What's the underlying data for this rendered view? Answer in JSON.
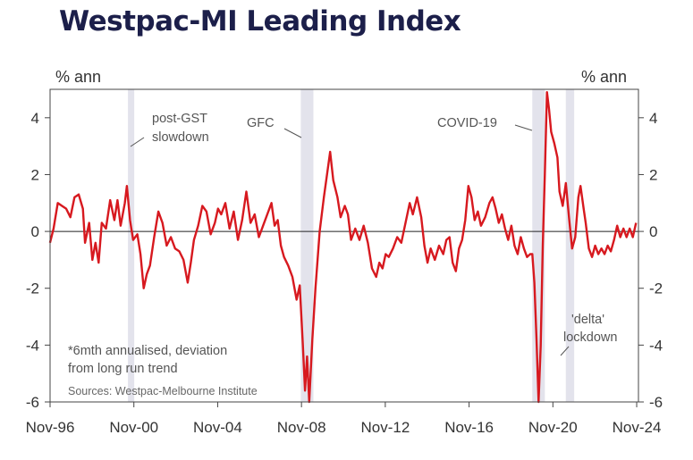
{
  "chart_data": {
    "type": "line",
    "title": "Westpac-MI Leading Index",
    "ylabel_left": "% ann",
    "ylabel_right": "% ann",
    "ylim": [
      -6,
      5
    ],
    "yticks": [
      4,
      2,
      0,
      -2,
      -4,
      -6
    ],
    "xlim": [
      1996.833,
      2024.917
    ],
    "xticks": [
      {
        "value": 1996.833,
        "label": "Nov-96"
      },
      {
        "value": 2000.833,
        "label": "Nov-00"
      },
      {
        "value": 2004.833,
        "label": "Nov-04"
      },
      {
        "value": 2008.833,
        "label": "Nov-08"
      },
      {
        "value": 2012.833,
        "label": "Nov-12"
      },
      {
        "value": 2016.833,
        "label": "Nov-16"
      },
      {
        "value": 2020.833,
        "label": "Nov-20"
      },
      {
        "value": 2024.833,
        "label": "Nov-24"
      }
    ],
    "grid": false,
    "zero_line": true,
    "series": [
      {
        "name": "",
        "color": "#d7191f",
        "points": [
          [
            1996.83,
            -0.4
          ],
          [
            1997.0,
            0.1
          ],
          [
            1997.2,
            1.0
          ],
          [
            1997.4,
            0.9
          ],
          [
            1997.6,
            0.8
          ],
          [
            1997.8,
            0.5
          ],
          [
            1998.0,
            1.2
          ],
          [
            1998.2,
            1.3
          ],
          [
            1998.4,
            0.8
          ],
          [
            1998.5,
            -0.4
          ],
          [
            1998.7,
            0.3
          ],
          [
            1998.85,
            -1.0
          ],
          [
            1999.0,
            -0.4
          ],
          [
            1999.15,
            -1.1
          ],
          [
            1999.3,
            0.3
          ],
          [
            1999.5,
            0.1
          ],
          [
            1999.7,
            1.1
          ],
          [
            1999.9,
            0.4
          ],
          [
            2000.05,
            1.1
          ],
          [
            2000.2,
            0.2
          ],
          [
            2000.4,
            1.0
          ],
          [
            2000.5,
            1.6
          ],
          [
            2000.65,
            0.4
          ],
          [
            2000.8,
            -0.3
          ],
          [
            2001.0,
            -0.1
          ],
          [
            2001.15,
            -0.8
          ],
          [
            2001.3,
            -2.0
          ],
          [
            2001.45,
            -1.5
          ],
          [
            2001.6,
            -1.2
          ],
          [
            2001.8,
            -0.2
          ],
          [
            2002.0,
            0.7
          ],
          [
            2002.2,
            0.3
          ],
          [
            2002.4,
            -0.5
          ],
          [
            2002.6,
            -0.2
          ],
          [
            2002.8,
            -0.6
          ],
          [
            2003.0,
            -0.7
          ],
          [
            2003.2,
            -1.0
          ],
          [
            2003.4,
            -1.8
          ],
          [
            2003.55,
            -1.1
          ],
          [
            2003.7,
            -0.3
          ],
          [
            2003.9,
            0.2
          ],
          [
            2004.1,
            0.9
          ],
          [
            2004.3,
            0.7
          ],
          [
            2004.5,
            -0.1
          ],
          [
            2004.7,
            0.3
          ],
          [
            2004.85,
            0.8
          ],
          [
            2005.0,
            0.6
          ],
          [
            2005.2,
            1.0
          ],
          [
            2005.4,
            0.1
          ],
          [
            2005.6,
            0.7
          ],
          [
            2005.8,
            -0.3
          ],
          [
            2006.0,
            0.4
          ],
          [
            2006.2,
            1.4
          ],
          [
            2006.4,
            0.3
          ],
          [
            2006.6,
            0.6
          ],
          [
            2006.8,
            -0.2
          ],
          [
            2007.0,
            0.2
          ],
          [
            2007.2,
            0.6
          ],
          [
            2007.4,
            1.0
          ],
          [
            2007.55,
            0.2
          ],
          [
            2007.7,
            0.4
          ],
          [
            2007.85,
            -0.5
          ],
          [
            2008.0,
            -0.9
          ],
          [
            2008.2,
            -1.2
          ],
          [
            2008.4,
            -1.6
          ],
          [
            2008.6,
            -2.4
          ],
          [
            2008.75,
            -1.9
          ],
          [
            2008.9,
            -4.0
          ],
          [
            2009.0,
            -5.6
          ],
          [
            2009.1,
            -4.4
          ],
          [
            2009.2,
            -6.0
          ],
          [
            2009.35,
            -3.8
          ],
          [
            2009.5,
            -2.0
          ],
          [
            2009.7,
            0.0
          ],
          [
            2009.9,
            1.2
          ],
          [
            2010.05,
            2.0
          ],
          [
            2010.2,
            2.8
          ],
          [
            2010.35,
            1.8
          ],
          [
            2010.55,
            1.2
          ],
          [
            2010.7,
            0.5
          ],
          [
            2010.9,
            0.9
          ],
          [
            2011.05,
            0.6
          ],
          [
            2011.2,
            -0.3
          ],
          [
            2011.4,
            0.1
          ],
          [
            2011.6,
            -0.3
          ],
          [
            2011.8,
            0.2
          ],
          [
            2012.0,
            -0.4
          ],
          [
            2012.2,
            -1.3
          ],
          [
            2012.4,
            -1.6
          ],
          [
            2012.55,
            -1.1
          ],
          [
            2012.7,
            -1.3
          ],
          [
            2012.85,
            -0.8
          ],
          [
            2013.0,
            -0.9
          ],
          [
            2013.2,
            -0.6
          ],
          [
            2013.4,
            -0.2
          ],
          [
            2013.6,
            -0.4
          ],
          [
            2013.8,
            0.3
          ],
          [
            2014.0,
            1.0
          ],
          [
            2014.15,
            0.6
          ],
          [
            2014.35,
            1.2
          ],
          [
            2014.55,
            0.5
          ],
          [
            2014.7,
            -0.5
          ],
          [
            2014.85,
            -1.1
          ],
          [
            2015.0,
            -0.6
          ],
          [
            2015.2,
            -1.0
          ],
          [
            2015.4,
            -0.5
          ],
          [
            2015.6,
            -0.8
          ],
          [
            2015.75,
            -0.3
          ],
          [
            2015.9,
            -0.2
          ],
          [
            2016.05,
            -1.1
          ],
          [
            2016.2,
            -1.4
          ],
          [
            2016.35,
            -0.6
          ],
          [
            2016.5,
            -0.3
          ],
          [
            2016.65,
            0.4
          ],
          [
            2016.8,
            1.6
          ],
          [
            2016.95,
            1.2
          ],
          [
            2017.1,
            0.4
          ],
          [
            2017.25,
            0.7
          ],
          [
            2017.4,
            0.2
          ],
          [
            2017.6,
            0.5
          ],
          [
            2017.8,
            1.0
          ],
          [
            2017.95,
            1.2
          ],
          [
            2018.1,
            0.8
          ],
          [
            2018.25,
            0.3
          ],
          [
            2018.4,
            0.6
          ],
          [
            2018.55,
            0.1
          ],
          [
            2018.7,
            -0.3
          ],
          [
            2018.85,
            0.2
          ],
          [
            2019.0,
            -0.5
          ],
          [
            2019.15,
            -0.8
          ],
          [
            2019.3,
            -0.2
          ],
          [
            2019.45,
            -0.6
          ],
          [
            2019.6,
            -0.9
          ],
          [
            2019.75,
            -0.8
          ],
          [
            2019.85,
            -0.8
          ],
          [
            2019.95,
            -1.8
          ],
          [
            2020.05,
            -3.8
          ],
          [
            2020.15,
            -6.0
          ],
          [
            2020.25,
            -4.0
          ],
          [
            2020.35,
            -0.5
          ],
          [
            2020.45,
            2.0
          ],
          [
            2020.55,
            4.9
          ],
          [
            2020.65,
            4.3
          ],
          [
            2020.75,
            3.5
          ],
          [
            2020.9,
            3.1
          ],
          [
            2021.05,
            2.6
          ],
          [
            2021.15,
            1.4
          ],
          [
            2021.3,
            0.9
          ],
          [
            2021.45,
            1.7
          ],
          [
            2021.6,
            0.5
          ],
          [
            2021.75,
            -0.6
          ],
          [
            2021.9,
            -0.2
          ],
          [
            2022.05,
            1.2
          ],
          [
            2022.15,
            1.6
          ],
          [
            2022.3,
            0.8
          ],
          [
            2022.4,
            0.3
          ],
          [
            2022.55,
            -0.6
          ],
          [
            2022.7,
            -0.9
          ],
          [
            2022.85,
            -0.5
          ],
          [
            2023.0,
            -0.8
          ],
          [
            2023.15,
            -0.6
          ],
          [
            2023.3,
            -0.8
          ],
          [
            2023.45,
            -0.5
          ],
          [
            2023.6,
            -0.7
          ],
          [
            2023.75,
            -0.3
          ],
          [
            2023.9,
            0.2
          ],
          [
            2024.05,
            -0.2
          ],
          [
            2024.2,
            0.1
          ],
          [
            2024.35,
            -0.2
          ],
          [
            2024.5,
            0.1
          ],
          [
            2024.65,
            -0.2
          ],
          [
            2024.8,
            0.3
          ]
        ]
      }
    ],
    "shaded_periods": [
      {
        "start": 2000.55,
        "end": 2000.85
      },
      {
        "start": 2008.8,
        "end": 2009.4
      },
      {
        "start": 2019.85,
        "end": 2020.45
      },
      {
        "start": 2021.45,
        "end": 2021.85
      }
    ],
    "annotations": [
      {
        "lines": [
          "post-GST",
          "slowdown"
        ]
      },
      {
        "lines": [
          "GFC"
        ]
      },
      {
        "lines": [
          "COVID-19"
        ]
      },
      {
        "lines": [
          "'delta'",
          "lockdown"
        ]
      }
    ],
    "footnote": [
      "*6mth annualised, deviation",
      "from long run trend"
    ],
    "source": "Sources: Westpac-Melbourne Institute"
  }
}
